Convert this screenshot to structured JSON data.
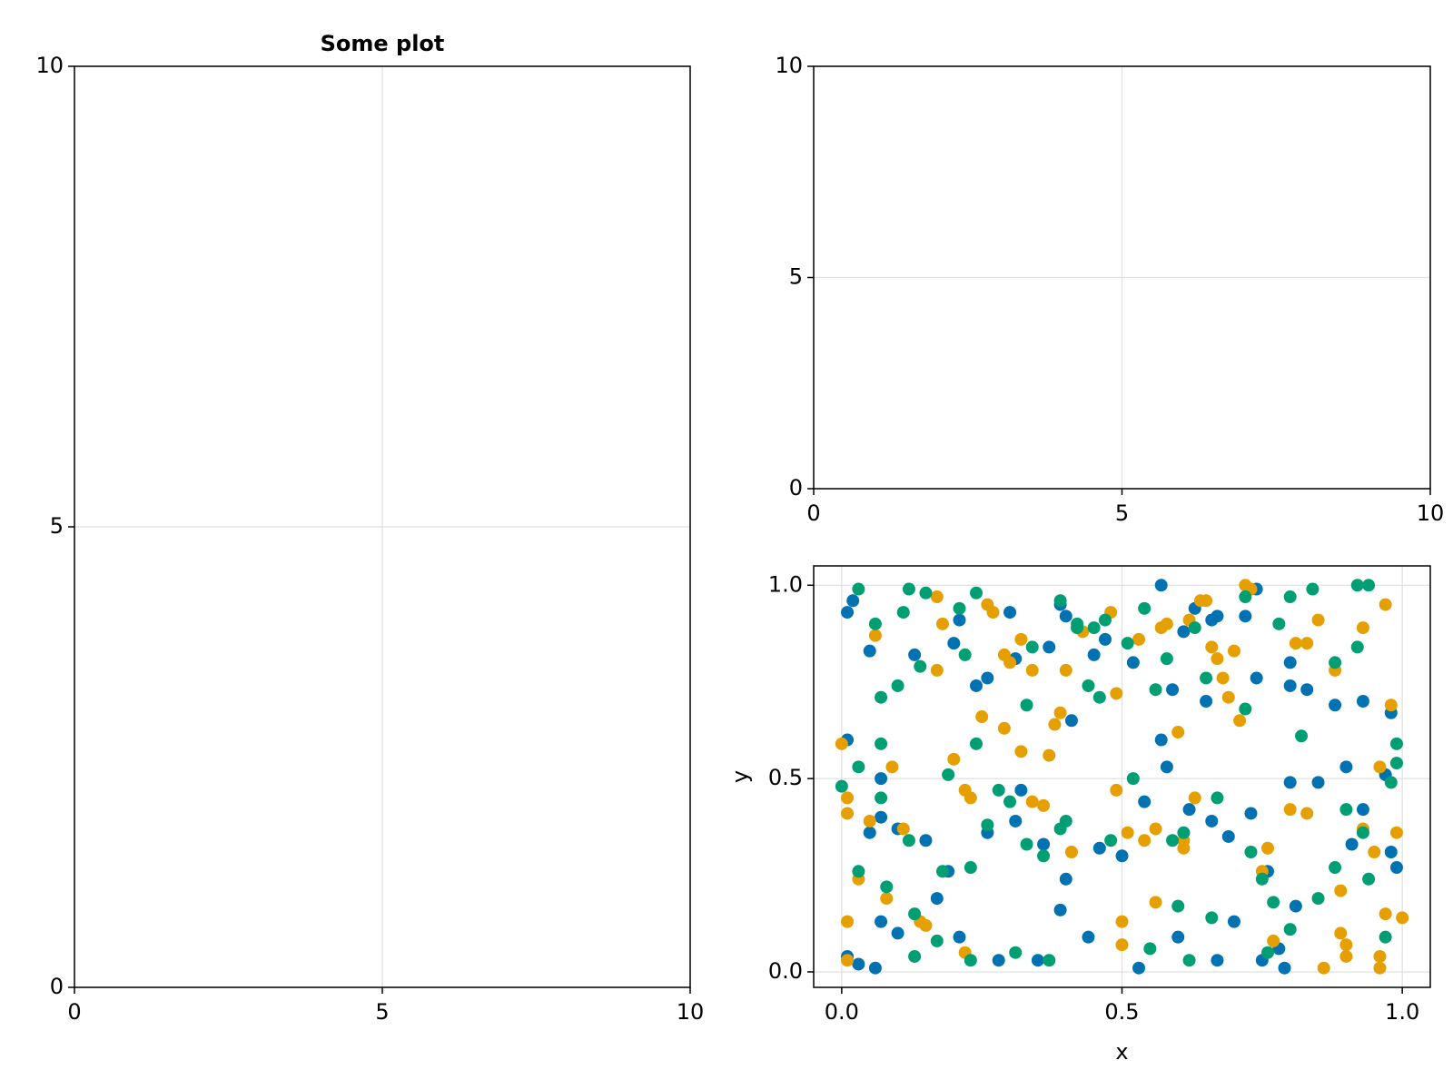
{
  "chart_data": [
    {
      "type": "scatter",
      "title": "Some plot",
      "xlim": [
        0,
        10
      ],
      "ylim": [
        0,
        10
      ],
      "xticks": [
        0,
        5,
        10
      ],
      "yticks": [
        0,
        5,
        10
      ],
      "grid": true,
      "series": []
    },
    {
      "type": "scatter",
      "xlim": [
        0,
        10
      ],
      "ylim": [
        0,
        10
      ],
      "xticks": [
        0,
        5,
        10
      ],
      "yticks": [
        0,
        5,
        10
      ],
      "grid": true,
      "series": []
    },
    {
      "type": "scatter",
      "x_label": "x",
      "y_label": "y",
      "xlim": [
        -0.05,
        1.05
      ],
      "ylim": [
        -0.04,
        1.05
      ],
      "xticks": [
        {
          "value": 0,
          "label": "0.0"
        },
        0.5,
        {
          "value": 1,
          "label": "1.0"
        }
      ],
      "yticks": [
        {
          "value": 0,
          "label": "0.0"
        },
        0.5,
        {
          "value": 1,
          "label": "1.0"
        }
      ],
      "grid": true,
      "series": [
        {
          "color": "#0072b2",
          "x": [
            0.01,
            0.02,
            0.05,
            0.01,
            0.07,
            0.07,
            0.05,
            0.01,
            0.03,
            0.06,
            0.07,
            0.1,
            0.13,
            0.2,
            0.21,
            0.24,
            0.26,
            0.31,
            0.3,
            0.37,
            0.39,
            0.4,
            0.41,
            0.45,
            0.47,
            0.52,
            0.57,
            0.57,
            0.59,
            0.61,
            0.63,
            0.66,
            0.67,
            0.65,
            0.72,
            0.74,
            0.74,
            0.8,
            0.8,
            0.83,
            0.88,
            0.93,
            0.98,
            0.93,
            0.91,
            0.98,
            0.99,
            0.81,
            0.78,
            0.75,
            0.79,
            0.7,
            0.67,
            0.6,
            0.53,
            0.44,
            0.39,
            0.4,
            0.35,
            0.28,
            0.21,
            0.17,
            0.1,
            0.15,
            0.19,
            0.26,
            0.31,
            0.32,
            0.36,
            0.46,
            0.5,
            0.54,
            0.58,
            0.62,
            0.66,
            0.69,
            0.73,
            0.76,
            0.8,
            0.85,
            0.9,
            0.97
          ],
          "values": [
            0.93,
            0.96,
            0.83,
            0.6,
            0.5,
            0.4,
            0.36,
            0.04,
            0.02,
            0.01,
            0.13,
            0.1,
            0.82,
            0.85,
            0.91,
            0.74,
            0.76,
            0.81,
            0.93,
            0.84,
            0.95,
            0.92,
            0.65,
            0.82,
            0.86,
            0.8,
            1.0,
            0.6,
            0.73,
            0.88,
            0.94,
            0.91,
            0.92,
            0.7,
            0.92,
            0.99,
            0.76,
            0.74,
            0.8,
            0.73,
            0.69,
            0.7,
            0.67,
            0.42,
            0.33,
            0.31,
            0.27,
            0.17,
            0.06,
            0.03,
            0.01,
            0.13,
            0.03,
            0.09,
            0.01,
            0.09,
            0.16,
            0.24,
            0.03,
            0.03,
            0.09,
            0.19,
            0.37,
            0.34,
            0.26,
            0.36,
            0.39,
            0.47,
            0.33,
            0.32,
            0.3,
            0.44,
            0.53,
            0.42,
            0.39,
            0.35,
            0.41,
            0.26,
            0.49,
            0.49,
            0.53,
            0.51
          ]
        },
        {
          "color": "#e69f00",
          "x": [
            0.0,
            0.01,
            0.01,
            0.01,
            0.01,
            0.03,
            0.06,
            0.05,
            0.08,
            0.09,
            0.11,
            0.14,
            0.15,
            0.17,
            0.17,
            0.18,
            0.2,
            0.22,
            0.23,
            0.22,
            0.25,
            0.26,
            0.27,
            0.29,
            0.3,
            0.29,
            0.32,
            0.32,
            0.34,
            0.34,
            0.36,
            0.37,
            0.38,
            0.39,
            0.4,
            0.41,
            0.42,
            0.43,
            0.48,
            0.49,
            0.49,
            0.5,
            0.5,
            0.51,
            0.53,
            0.54,
            0.56,
            0.56,
            0.57,
            0.58,
            0.6,
            0.61,
            0.61,
            0.62,
            0.63,
            0.64,
            0.65,
            0.66,
            0.67,
            0.68,
            0.69,
            0.7,
            0.71,
            0.72,
            0.73,
            0.75,
            0.76,
            0.77,
            0.8,
            0.81,
            0.83,
            0.83,
            0.85,
            0.86,
            0.88,
            0.89,
            0.89,
            0.9,
            0.9,
            0.93,
            0.93,
            0.95,
            0.96,
            0.97,
            0.98,
            0.97,
            0.96,
            0.96,
            0.99,
            1.0
          ],
          "values": [
            0.59,
            0.45,
            0.41,
            0.13,
            0.03,
            0.24,
            0.87,
            0.39,
            0.19,
            0.53,
            0.37,
            0.13,
            0.12,
            0.78,
            0.97,
            0.9,
            0.55,
            0.47,
            0.45,
            0.05,
            0.66,
            0.95,
            0.93,
            0.82,
            0.8,
            0.63,
            0.57,
            0.86,
            0.78,
            0.44,
            0.43,
            0.56,
            0.64,
            0.67,
            0.78,
            0.31,
            0.89,
            0.88,
            0.93,
            0.72,
            0.47,
            0.13,
            0.07,
            0.36,
            0.86,
            0.34,
            0.37,
            0.18,
            0.89,
            0.9,
            0.62,
            0.34,
            0.32,
            0.91,
            0.45,
            0.96,
            0.96,
            0.84,
            0.81,
            0.76,
            0.71,
            0.83,
            0.65,
            1.0,
            0.99,
            0.26,
            0.32,
            0.08,
            0.42,
            0.85,
            0.85,
            0.41,
            0.91,
            0.01,
            0.78,
            0.21,
            0.1,
            0.07,
            0.04,
            0.89,
            0.37,
            0.31,
            0.53,
            0.95,
            0.69,
            0.15,
            0.04,
            0.01,
            0.36,
            0.14
          ]
        },
        {
          "color": "#009e73",
          "x": [
            0.0,
            0.03,
            0.03,
            0.03,
            0.06,
            0.07,
            0.07,
            0.07,
            0.08,
            0.1,
            0.11,
            0.12,
            0.12,
            0.13,
            0.13,
            0.15,
            0.14,
            0.17,
            0.18,
            0.19,
            0.21,
            0.22,
            0.23,
            0.23,
            0.24,
            0.24,
            0.26,
            0.28,
            0.3,
            0.31,
            0.33,
            0.33,
            0.34,
            0.36,
            0.37,
            0.39,
            0.39,
            0.4,
            0.42,
            0.42,
            0.44,
            0.45,
            0.46,
            0.47,
            0.48,
            0.51,
            0.52,
            0.54,
            0.55,
            0.56,
            0.58,
            0.59,
            0.6,
            0.61,
            0.62,
            0.63,
            0.65,
            0.67,
            0.66,
            0.72,
            0.72,
            0.73,
            0.75,
            0.76,
            0.77,
            0.78,
            0.8,
            0.8,
            0.82,
            0.84,
            0.85,
            0.88,
            0.88,
            0.9,
            0.92,
            0.92,
            0.94,
            0.93,
            0.94,
            0.97,
            0.98,
            0.99,
            0.99
          ],
          "values": [
            0.48,
            0.99,
            0.53,
            0.26,
            0.9,
            0.71,
            0.59,
            0.45,
            0.22,
            0.74,
            0.93,
            0.99,
            0.34,
            0.15,
            0.04,
            0.98,
            0.79,
            0.08,
            0.26,
            0.51,
            0.94,
            0.82,
            0.27,
            0.03,
            0.98,
            0.59,
            0.38,
            0.47,
            0.44,
            0.05,
            0.69,
            0.33,
            0.84,
            0.3,
            0.03,
            0.37,
            0.96,
            0.39,
            0.89,
            0.9,
            0.74,
            0.89,
            0.71,
            0.91,
            0.34,
            0.85,
            0.5,
            0.94,
            0.06,
            0.73,
            0.81,
            0.34,
            0.17,
            0.36,
            0.03,
            0.89,
            0.76,
            0.45,
            0.14,
            0.97,
            0.68,
            0.31,
            0.24,
            0.05,
            0.18,
            0.9,
            0.11,
            0.97,
            0.61,
            0.99,
            0.19,
            0.27,
            0.8,
            0.42,
            1.0,
            0.84,
            1.0,
            0.36,
            0.24,
            0.09,
            0.49,
            0.59,
            0.54
          ]
        }
      ]
    }
  ]
}
